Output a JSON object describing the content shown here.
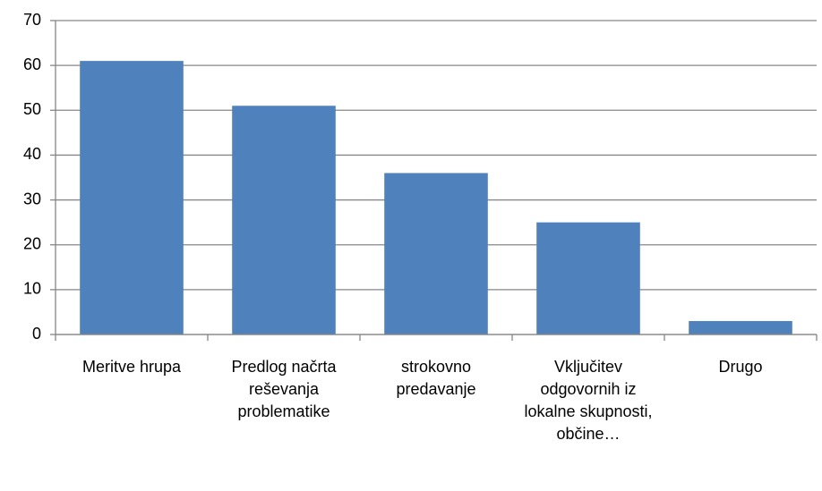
{
  "chart_data": {
    "type": "bar",
    "categories": [
      "Meritve hrupa",
      "Predlog načrta reševanja problematike",
      "strokovno predavanje",
      "Vključitev odgovornih iz lokalne skupnosti, občine…",
      "Drugo"
    ],
    "values": [
      61,
      51,
      36,
      25,
      3
    ],
    "color": "#4f81bd",
    "ylim": [
      0,
      70
    ],
    "yticks": [
      0,
      10,
      20,
      30,
      40,
      50,
      60,
      70
    ],
    "grid": true
  }
}
